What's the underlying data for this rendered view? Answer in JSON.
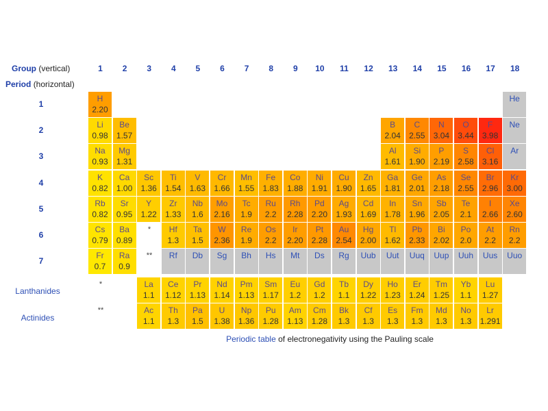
{
  "header": {
    "group_label": "Group",
    "group_sub": "(vertical)",
    "period_label": "Period",
    "period_sub": "(horizontal)"
  },
  "groups": [
    "1",
    "2",
    "3",
    "4",
    "5",
    "6",
    "7",
    "8",
    "9",
    "10",
    "11",
    "12",
    "13",
    "14",
    "15",
    "16",
    "17",
    "18"
  ],
  "periods": [
    "1",
    "2",
    "3",
    "4",
    "5",
    "6",
    "7"
  ],
  "series_labels": {
    "lanthanides": "Lanthanides",
    "actinides": "Actinides"
  },
  "markers": {
    "lanthanide": "*",
    "actinide": "**"
  },
  "caption": {
    "link": "Periodic table",
    "text": " of electronegativity using the Pauling scale"
  },
  "colors": {
    "gray": "#c8c8c8",
    "low": "#ffe800",
    "mid": "#ff9a00",
    "high": "#ff2a10",
    "header_blue": "#1f3fa8"
  },
  "chart_data": {
    "type": "heatmap",
    "title": "Periodic table of electronegativity using the Pauling scale",
    "xlabel": "Group (vertical)",
    "ylabel": "Period (horizontal)",
    "x": [
      "1",
      "2",
      "3",
      "4",
      "5",
      "6",
      "7",
      "8",
      "9",
      "10",
      "11",
      "12",
      "13",
      "14",
      "15",
      "16",
      "17",
      "18"
    ],
    "y": [
      "1",
      "2",
      "3",
      "4",
      "5",
      "6",
      "7",
      "Lanthanides",
      "Actinides"
    ],
    "elements": [
      {
        "sym": "H",
        "val": "2.20",
        "g": 1,
        "p": 1
      },
      {
        "sym": "He",
        "val": "",
        "g": 18,
        "p": 1
      },
      {
        "sym": "Li",
        "val": "0.98",
        "g": 1,
        "p": 2
      },
      {
        "sym": "Be",
        "val": "1.57",
        "g": 2,
        "p": 2
      },
      {
        "sym": "B",
        "val": "2.04",
        "g": 13,
        "p": 2
      },
      {
        "sym": "C",
        "val": "2.55",
        "g": 14,
        "p": 2
      },
      {
        "sym": "N",
        "val": "3.04",
        "g": 15,
        "p": 2
      },
      {
        "sym": "O",
        "val": "3.44",
        "g": 16,
        "p": 2
      },
      {
        "sym": "F",
        "val": "3.98",
        "g": 17,
        "p": 2
      },
      {
        "sym": "Ne",
        "val": "",
        "g": 18,
        "p": 2
      },
      {
        "sym": "Na",
        "val": "0.93",
        "g": 1,
        "p": 3
      },
      {
        "sym": "Mg",
        "val": "1.31",
        "g": 2,
        "p": 3
      },
      {
        "sym": "Al",
        "val": "1.61",
        "g": 13,
        "p": 3
      },
      {
        "sym": "Si",
        "val": "1.90",
        "g": 14,
        "p": 3
      },
      {
        "sym": "P",
        "val": "2.19",
        "g": 15,
        "p": 3
      },
      {
        "sym": "S",
        "val": "2.58",
        "g": 16,
        "p": 3
      },
      {
        "sym": "Cl",
        "val": "3.16",
        "g": 17,
        "p": 3
      },
      {
        "sym": "Ar",
        "val": "",
        "g": 18,
        "p": 3
      },
      {
        "sym": "K",
        "val": "0.82",
        "g": 1,
        "p": 4
      },
      {
        "sym": "Ca",
        "val": "1.00",
        "g": 2,
        "p": 4
      },
      {
        "sym": "Sc",
        "val": "1.36",
        "g": 3,
        "p": 4
      },
      {
        "sym": "Ti",
        "val": "1.54",
        "g": 4,
        "p": 4
      },
      {
        "sym": "V",
        "val": "1.63",
        "g": 5,
        "p": 4
      },
      {
        "sym": "Cr",
        "val": "1.66",
        "g": 6,
        "p": 4
      },
      {
        "sym": "Mn",
        "val": "1.55",
        "g": 7,
        "p": 4
      },
      {
        "sym": "Fe",
        "val": "1.83",
        "g": 8,
        "p": 4
      },
      {
        "sym": "Co",
        "val": "1.88",
        "g": 9,
        "p": 4
      },
      {
        "sym": "Ni",
        "val": "1.91",
        "g": 10,
        "p": 4
      },
      {
        "sym": "Cu",
        "val": "1.90",
        "g": 11,
        "p": 4
      },
      {
        "sym": "Zn",
        "val": "1.65",
        "g": 12,
        "p": 4
      },
      {
        "sym": "Ga",
        "val": "1.81",
        "g": 13,
        "p": 4
      },
      {
        "sym": "Ge",
        "val": "2.01",
        "g": 14,
        "p": 4
      },
      {
        "sym": "As",
        "val": "2.18",
        "g": 15,
        "p": 4
      },
      {
        "sym": "Se",
        "val": "2.55",
        "g": 16,
        "p": 4
      },
      {
        "sym": "Br",
        "val": "2.96",
        "g": 17,
        "p": 4
      },
      {
        "sym": "Kr",
        "val": "3.00",
        "g": 18,
        "p": 4
      },
      {
        "sym": "Rb",
        "val": "0.82",
        "g": 1,
        "p": 5
      },
      {
        "sym": "Sr",
        "val": "0.95",
        "g": 2,
        "p": 5
      },
      {
        "sym": "Y",
        "val": "1.22",
        "g": 3,
        "p": 5
      },
      {
        "sym": "Zr",
        "val": "1.33",
        "g": 4,
        "p": 5
      },
      {
        "sym": "Nb",
        "val": "1.6",
        "g": 5,
        "p": 5
      },
      {
        "sym": "Mo",
        "val": "2.16",
        "g": 6,
        "p": 5
      },
      {
        "sym": "Tc",
        "val": "1.9",
        "g": 7,
        "p": 5
      },
      {
        "sym": "Ru",
        "val": "2.2",
        "g": 8,
        "p": 5
      },
      {
        "sym": "Rh",
        "val": "2.28",
        "g": 9,
        "p": 5
      },
      {
        "sym": "Pd",
        "val": "2.20",
        "g": 10,
        "p": 5
      },
      {
        "sym": "Ag",
        "val": "1.93",
        "g": 11,
        "p": 5
      },
      {
        "sym": "Cd",
        "val": "1.69",
        "g": 12,
        "p": 5
      },
      {
        "sym": "In",
        "val": "1.78",
        "g": 13,
        "p": 5
      },
      {
        "sym": "Sn",
        "val": "1.96",
        "g": 14,
        "p": 5
      },
      {
        "sym": "Sb",
        "val": "2.05",
        "g": 15,
        "p": 5
      },
      {
        "sym": "Te",
        "val": "2.1",
        "g": 16,
        "p": 5
      },
      {
        "sym": "I",
        "val": "2.66",
        "g": 17,
        "p": 5
      },
      {
        "sym": "Xe",
        "val": "2.60",
        "g": 18,
        "p": 5
      },
      {
        "sym": "Cs",
        "val": "0.79",
        "g": 1,
        "p": 6
      },
      {
        "sym": "Ba",
        "val": "0.89",
        "g": 2,
        "p": 6
      },
      {
        "sym": "Hf",
        "val": "1.3",
        "g": 4,
        "p": 6
      },
      {
        "sym": "Ta",
        "val": "1.5",
        "g": 5,
        "p": 6
      },
      {
        "sym": "W",
        "val": "2.36",
        "g": 6,
        "p": 6
      },
      {
        "sym": "Re",
        "val": "1.9",
        "g": 7,
        "p": 6
      },
      {
        "sym": "Os",
        "val": "2.2",
        "g": 8,
        "p": 6
      },
      {
        "sym": "Ir",
        "val": "2.20",
        "g": 9,
        "p": 6
      },
      {
        "sym": "Pt",
        "val": "2.28",
        "g": 10,
        "p": 6
      },
      {
        "sym": "Au",
        "val": "2.54",
        "g": 11,
        "p": 6
      },
      {
        "sym": "Hg",
        "val": "2.00",
        "g": 12,
        "p": 6
      },
      {
        "sym": "Tl",
        "val": "1.62",
        "g": 13,
        "p": 6
      },
      {
        "sym": "Pb",
        "val": "2.33",
        "g": 14,
        "p": 6
      },
      {
        "sym": "Bi",
        "val": "2.02",
        "g": 15,
        "p": 6
      },
      {
        "sym": "Po",
        "val": "2.0",
        "g": 16,
        "p": 6
      },
      {
        "sym": "At",
        "val": "2.2",
        "g": 17,
        "p": 6
      },
      {
        "sym": "Rn",
        "val": "2.2",
        "g": 18,
        "p": 6
      },
      {
        "sym": "Fr",
        "val": "0.7",
        "g": 1,
        "p": 7
      },
      {
        "sym": "Ra",
        "val": "0.9",
        "g": 2,
        "p": 7
      },
      {
        "sym": "Rf",
        "val": "",
        "g": 4,
        "p": 7
      },
      {
        "sym": "Db",
        "val": "",
        "g": 5,
        "p": 7
      },
      {
        "sym": "Sg",
        "val": "",
        "g": 6,
        "p": 7
      },
      {
        "sym": "Bh",
        "val": "",
        "g": 7,
        "p": 7
      },
      {
        "sym": "Hs",
        "val": "",
        "g": 8,
        "p": 7
      },
      {
        "sym": "Mt",
        "val": "",
        "g": 9,
        "p": 7
      },
      {
        "sym": "Ds",
        "val": "",
        "g": 10,
        "p": 7
      },
      {
        "sym": "Rg",
        "val": "",
        "g": 11,
        "p": 7
      },
      {
        "sym": "Uub",
        "val": "",
        "g": 12,
        "p": 7
      },
      {
        "sym": "Uut",
        "val": "",
        "g": 13,
        "p": 7
      },
      {
        "sym": "Uuq",
        "val": "",
        "g": 14,
        "p": 7
      },
      {
        "sym": "Uup",
        "val": "",
        "g": 15,
        "p": 7
      },
      {
        "sym": "Uuh",
        "val": "",
        "g": 16,
        "p": 7
      },
      {
        "sym": "Uus",
        "val": "",
        "g": 17,
        "p": 7
      },
      {
        "sym": "Uuo",
        "val": "",
        "g": 18,
        "p": 7
      },
      {
        "sym": "La",
        "val": "1.1",
        "g": 3,
        "p": 8
      },
      {
        "sym": "Ce",
        "val": "1.12",
        "g": 4,
        "p": 8
      },
      {
        "sym": "Pr",
        "val": "1.13",
        "g": 5,
        "p": 8
      },
      {
        "sym": "Nd",
        "val": "1.14",
        "g": 6,
        "p": 8
      },
      {
        "sym": "Pm",
        "val": "1.13",
        "g": 7,
        "p": 8
      },
      {
        "sym": "Sm",
        "val": "1.17",
        "g": 8,
        "p": 8
      },
      {
        "sym": "Eu",
        "val": "1.2",
        "g": 9,
        "p": 8
      },
      {
        "sym": "Gd",
        "val": "1.2",
        "g": 10,
        "p": 8
      },
      {
        "sym": "Tb",
        "val": "1.1",
        "g": 11,
        "p": 8
      },
      {
        "sym": "Dy",
        "val": "1.22",
        "g": 12,
        "p": 8
      },
      {
        "sym": "Ho",
        "val": "1.23",
        "g": 13,
        "p": 8
      },
      {
        "sym": "Er",
        "val": "1.24",
        "g": 14,
        "p": 8
      },
      {
        "sym": "Tm",
        "val": "1.25",
        "g": 15,
        "p": 8
      },
      {
        "sym": "Yb",
        "val": "1.1",
        "g": 16,
        "p": 8
      },
      {
        "sym": "Lu",
        "val": "1.27",
        "g": 17,
        "p": 8
      },
      {
        "sym": "Ac",
        "val": "1.1",
        "g": 3,
        "p": 9
      },
      {
        "sym": "Th",
        "val": "1.3",
        "g": 4,
        "p": 9
      },
      {
        "sym": "Pa",
        "val": "1.5",
        "g": 5,
        "p": 9
      },
      {
        "sym": "U",
        "val": "1.38",
        "g": 6,
        "p": 9
      },
      {
        "sym": "Np",
        "val": "1.36",
        "g": 7,
        "p": 9
      },
      {
        "sym": "Pu",
        "val": "1.28",
        "g": 8,
        "p": 9
      },
      {
        "sym": "Am",
        "val": "1.13",
        "g": 9,
        "p": 9
      },
      {
        "sym": "Cm",
        "val": "1.28",
        "g": 10,
        "p": 9
      },
      {
        "sym": "Bk",
        "val": "1.3",
        "g": 11,
        "p": 9
      },
      {
        "sym": "Cf",
        "val": "1.3",
        "g": 12,
        "p": 9
      },
      {
        "sym": "Es",
        "val": "1.3",
        "g": 13,
        "p": 9
      },
      {
        "sym": "Fm",
        "val": "1.3",
        "g": 14,
        "p": 9
      },
      {
        "sym": "Md",
        "val": "1.3",
        "g": 15,
        "p": 9
      },
      {
        "sym": "No",
        "val": "1.3",
        "g": 16,
        "p": 9
      },
      {
        "sym": "Lr",
        "val": "1.291",
        "g": 17,
        "p": 9
      }
    ]
  }
}
